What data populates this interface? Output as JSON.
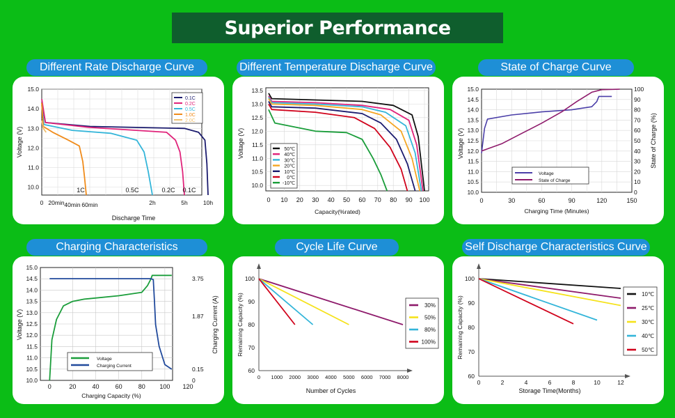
{
  "header": {
    "title": "Superior Performance"
  },
  "panels": [
    {
      "title": "Different Rate Discharge Curve"
    },
    {
      "title": "Different Temperature Discharge Curve"
    },
    {
      "title": "State of Charge Curve"
    },
    {
      "title": "Charging Characteristics"
    },
    {
      "title": "Cycle Life Curve"
    },
    {
      "title": "Self Discharge Characteristics Curve"
    }
  ],
  "chart_data": [
    {
      "type": "line",
      "title": "Different Rate Discharge Curve",
      "xlabel": "Discharge Time",
      "ylabel": "Voltage (V)",
      "ylim": [
        9.6,
        15.0
      ],
      "x_unit": "minutes",
      "x_ticks": [
        {
          "label": "0",
          "x": 0
        },
        {
          "label": "20min",
          "x": 20
        },
        {
          "label": "40min",
          "x": 40
        },
        {
          "label": "60min",
          "x": 60
        },
        {
          "label": "2h",
          "x": 120
        },
        {
          "label": "5h",
          "x": 300
        },
        {
          "label": "10h",
          "x": 600
        }
      ],
      "y_ticks": [
        "15.0",
        "14.0",
        "13.0",
        "12.0",
        "11.0",
        "10.0"
      ],
      "legend_position": "top-right",
      "curve_labels": [
        "1C",
        "0.5C",
        "0.2C",
        "0.1C"
      ],
      "series": [
        {
          "name": "0.1C",
          "color": "#1b1b6e",
          "points": [
            [
              0,
              14.3
            ],
            [
              5,
              13.3
            ],
            [
              60,
              13.1
            ],
            [
              300,
              13.0
            ],
            [
              480,
              12.8
            ],
            [
              560,
              12.4
            ],
            [
              585,
              11.2
            ],
            [
              600,
              9.6
            ]
          ]
        },
        {
          "name": "0.2C",
          "color": "#e0237a",
          "points": [
            [
              0,
              14.5
            ],
            [
              5,
              13.3
            ],
            [
              60,
              13.05
            ],
            [
              200,
              12.8
            ],
            [
              250,
              12.4
            ],
            [
              275,
              11.8
            ],
            [
              290,
              10.8
            ],
            [
              300,
              9.6
            ]
          ]
        },
        {
          "name": "0.5C",
          "color": "#33b5d9",
          "points": [
            [
              0,
              14.2
            ],
            [
              3,
              13.2
            ],
            [
              40,
              12.9
            ],
            [
              80,
              12.75
            ],
            [
              105,
              12.4
            ],
            [
              112,
              11.8
            ],
            [
              116,
              10.8
            ],
            [
              120,
              9.6
            ]
          ]
        },
        {
          "name": "1.0C",
          "color": "#f08b1a",
          "points": [
            [
              0,
              14.3
            ],
            [
              2,
              13.1
            ],
            [
              15,
              12.8
            ],
            [
              35,
              12.4
            ],
            [
              48,
              12.1
            ],
            [
              52,
              11.3
            ],
            [
              54,
              10.5
            ],
            [
              56,
              9.6
            ]
          ]
        },
        {
          "name": "2.0C",
          "color": "#f0c070",
          "points": [
            [
              0,
              13.4
            ],
            [
              2,
              13.0
            ],
            [
              6,
              12.8
            ]
          ]
        }
      ]
    },
    {
      "type": "line",
      "title": "Different Temperature Discharge Curve",
      "xlabel": "Capacity(%rated)",
      "ylabel": "Voltage (V)",
      "xlim": [
        0,
        100
      ],
      "ylim": [
        9.8,
        13.6
      ],
      "x_ticks": [
        0,
        10,
        20,
        30,
        40,
        50,
        60,
        70,
        80,
        90,
        100
      ],
      "y_ticks": [
        "13.5",
        "13.0",
        "12.5",
        "12.0",
        "11.5",
        "11.0",
        "10.5",
        "10.0"
      ],
      "legend_position": "bottom-left",
      "series": [
        {
          "name": "50℃",
          "color": "#111111",
          "points": [
            [
              0,
              13.4
            ],
            [
              2,
              13.2
            ],
            [
              30,
              13.15
            ],
            [
              60,
              13.1
            ],
            [
              80,
              12.95
            ],
            [
              92,
              12.6
            ],
            [
              96,
              11.8
            ],
            [
              100,
              9.8
            ]
          ]
        },
        {
          "name": "40℃",
          "color": "#e0237a",
          "points": [
            [
              0,
              13.3
            ],
            [
              2,
              13.1
            ],
            [
              30,
              13.05
            ],
            [
              60,
              12.95
            ],
            [
              78,
              12.8
            ],
            [
              90,
              12.4
            ],
            [
              95,
              11.5
            ],
            [
              99,
              9.8
            ]
          ]
        },
        {
          "name": "30℃",
          "color": "#33b5d9",
          "points": [
            [
              0,
              13.25
            ],
            [
              2,
              13.05
            ],
            [
              30,
              13.0
            ],
            [
              60,
              12.9
            ],
            [
              75,
              12.7
            ],
            [
              88,
              12.2
            ],
            [
              94,
              11.2
            ],
            [
              98,
              9.8
            ]
          ]
        },
        {
          "name": "20℃",
          "color": "#f5a623",
          "points": [
            [
              0,
              13.2
            ],
            [
              2,
              13.0
            ],
            [
              30,
              12.95
            ],
            [
              60,
              12.8
            ],
            [
              72,
              12.6
            ],
            [
              85,
              12.0
            ],
            [
              92,
              11.0
            ],
            [
              97,
              9.8
            ]
          ]
        },
        {
          "name": "10℃",
          "color": "#1b1b6e",
          "points": [
            [
              0,
              13.1
            ],
            [
              2,
              12.9
            ],
            [
              30,
              12.85
            ],
            [
              60,
              12.65
            ],
            [
              72,
              12.3
            ],
            [
              82,
              11.7
            ],
            [
              89,
              10.8
            ],
            [
              94,
              9.8
            ]
          ]
        },
        {
          "name": "0℃",
          "color": "#d0021b",
          "points": [
            [
              0,
              13.0
            ],
            [
              2,
              12.8
            ],
            [
              30,
              12.7
            ],
            [
              55,
              12.5
            ],
            [
              68,
              12.1
            ],
            [
              78,
              11.4
            ],
            [
              85,
              10.6
            ],
            [
              89,
              9.8
            ]
          ]
        },
        {
          "name": "-10℃",
          "color": "#1a9d3a",
          "points": [
            [
              0,
              12.8
            ],
            [
              4,
              12.3
            ],
            [
              30,
              12.0
            ],
            [
              50,
              11.95
            ],
            [
              60,
              11.7
            ],
            [
              67,
              11.0
            ],
            [
              72,
              10.4
            ],
            [
              76,
              9.8
            ]
          ]
        }
      ]
    },
    {
      "type": "line",
      "title": "State of Charge Curve",
      "xlabel": "Charging Time (Minutes)",
      "ylabel": "Voltage (V)",
      "y2label": "State of Charge (%)",
      "xlim": [
        0,
        150
      ],
      "ylim": [
        10.0,
        15.0
      ],
      "y2lim": [
        0,
        100
      ],
      "x_ticks": [
        0,
        30,
        60,
        90,
        120,
        150
      ],
      "y_ticks": [
        "15.0",
        "14.5",
        "14.0",
        "13.5",
        "13.0",
        "12.5",
        "12.0",
        "11.5",
        "11.0",
        "10.5",
        "10.0"
      ],
      "y2_ticks": [
        "100",
        "90",
        "80",
        "70",
        "60",
        "50",
        "40",
        "30",
        "20",
        "10",
        "0"
      ],
      "legend_position": "bottom-center",
      "series": [
        {
          "name": "Voltage",
          "axis": "left",
          "color": "#4b3fa8",
          "points": [
            [
              0,
              11.9
            ],
            [
              3,
              13.1
            ],
            [
              6,
              13.55
            ],
            [
              30,
              13.75
            ],
            [
              60,
              13.9
            ],
            [
              90,
              14.0
            ],
            [
              110,
              14.15
            ],
            [
              115,
              14.4
            ],
            [
              117,
              14.65
            ],
            [
              130,
              14.65
            ]
          ]
        },
        {
          "name": "State of Charge",
          "axis": "right",
          "color": "#8e1a6b",
          "points": [
            [
              0,
              40
            ],
            [
              20,
              47
            ],
            [
              40,
              57
            ],
            [
              60,
              67
            ],
            [
              80,
              78
            ],
            [
              95,
              88
            ],
            [
              110,
              97
            ],
            [
              120,
              99.5
            ],
            [
              138,
              100
            ]
          ]
        }
      ]
    },
    {
      "type": "line",
      "title": "Charging Characteristics",
      "xlabel": "Charging Capacity (%)",
      "ylabel": "Voltage (V)",
      "y2label": "Charging Current (A)",
      "xlim": [
        -8,
        120
      ],
      "ylim": [
        10.0,
        15.0
      ],
      "x_ticks": [
        0,
        20,
        40,
        60,
        80,
        100,
        120
      ],
      "y_ticks": [
        "15.0",
        "14.5",
        "14.0",
        "13.5",
        "13.0",
        "12.5",
        "12.0",
        "11.5",
        "11.0",
        "10.5",
        "10.0"
      ],
      "y2_ticks": [
        "3.75",
        "1.87",
        "0.15",
        "0"
      ],
      "legend_position": "bottom-left",
      "series": [
        {
          "name": "Voltage",
          "axis": "left",
          "color": "#1a9d3a",
          "points": [
            [
              0,
              10.0
            ],
            [
              2,
              11.8
            ],
            [
              6,
              12.7
            ],
            [
              12,
              13.3
            ],
            [
              20,
              13.5
            ],
            [
              30,
              13.6
            ],
            [
              60,
              13.75
            ],
            [
              80,
              13.9
            ],
            [
              85,
              14.2
            ],
            [
              88,
              14.5
            ],
            [
              89,
              14.65
            ],
            [
              106,
              14.65
            ]
          ]
        },
        {
          "name": "Charging Current",
          "axis": "right",
          "color": "#214a9c",
          "points": [
            [
              0,
              3.75
            ],
            [
              88,
              3.75
            ],
            [
              90,
              3.7
            ],
            [
              91,
              2.6
            ],
            [
              92,
              1.6
            ],
            [
              95,
              0.9
            ],
            [
              100,
              0.3
            ],
            [
              106,
              0.15
            ]
          ]
        }
      ]
    },
    {
      "type": "line",
      "title": "Cycle Life Curve",
      "xlabel": "Number of Cycles",
      "ylabel": "Remaining Capacity (%)",
      "xlim": [
        0,
        8000
      ],
      "ylim": [
        60,
        100
      ],
      "x_ticks": [
        0,
        1000,
        2000,
        3000,
        4000,
        5000,
        6000,
        7000,
        8000
      ],
      "y_ticks": [
        "100",
        "90",
        "80",
        "70",
        "60"
      ],
      "legend_position": "right",
      "series": [
        {
          "name": "30%",
          "color": "#8e1a6b",
          "points": [
            [
              0,
              100
            ],
            [
              8000,
              80
            ]
          ]
        },
        {
          "name": "50%",
          "color": "#f5e21a",
          "points": [
            [
              0,
              100
            ],
            [
              5000,
              80
            ]
          ]
        },
        {
          "name": "80%",
          "color": "#33b5d9",
          "points": [
            [
              0,
              100
            ],
            [
              3000,
              80
            ]
          ]
        },
        {
          "name": "100%",
          "color": "#d0021b",
          "points": [
            [
              0,
              100
            ],
            [
              2000,
              80
            ]
          ]
        }
      ]
    },
    {
      "type": "line",
      "title": "Self Discharge Characteristics Curve",
      "xlabel": "Storage Time(Months)",
      "ylabel": "Remaining Capacity (%)",
      "xlim": [
        0,
        12
      ],
      "ylim": [
        60,
        100
      ],
      "x_ticks": [
        0,
        2,
        4,
        6,
        8,
        10,
        12
      ],
      "y_ticks": [
        "100",
        "90",
        "80",
        "70",
        "60"
      ],
      "legend_position": "right",
      "series": [
        {
          "name": "10℃",
          "color": "#111111",
          "points": [
            [
              0,
              100
            ],
            [
              12,
              96
            ]
          ]
        },
        {
          "name": "25℃",
          "color": "#8e1a6b",
          "points": [
            [
              0,
              100
            ],
            [
              12,
              92
            ]
          ]
        },
        {
          "name": "30℃",
          "color": "#f5e21a",
          "points": [
            [
              0,
              100
            ],
            [
              12,
              89
            ]
          ]
        },
        {
          "name": "40℃",
          "color": "#33b5d9",
          "points": [
            [
              0,
              100
            ],
            [
              10,
              83
            ]
          ]
        },
        {
          "name": "50℃",
          "color": "#d0021b",
          "points": [
            [
              0,
              100
            ],
            [
              8,
              81.5
            ]
          ]
        }
      ]
    }
  ]
}
